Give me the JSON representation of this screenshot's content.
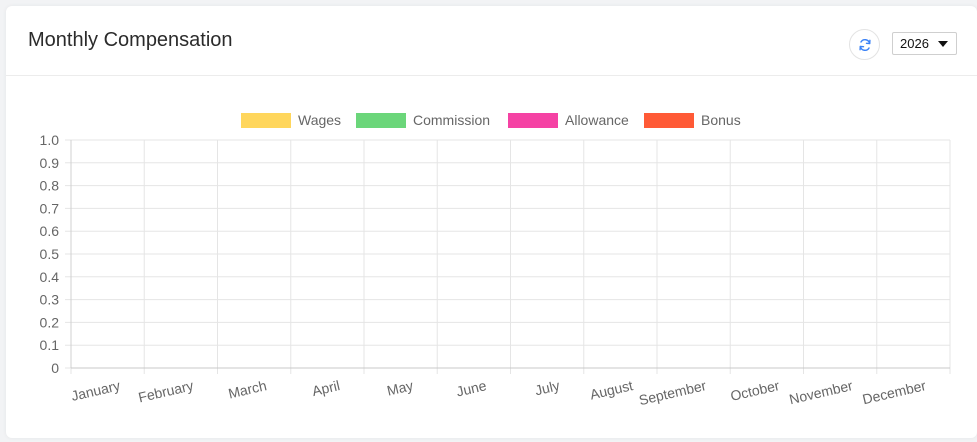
{
  "header": {
    "title": "Monthly Compensation",
    "refresh_icon": "refresh-icon",
    "year_value": "2026"
  },
  "colors": {
    "wages": "#ffd65c",
    "commission": "#6bd67a",
    "allowance": "#f542a4",
    "bonus": "#ff5a36",
    "refresh_icon": "#3b82f6",
    "grid": "#e5e5e5",
    "text": "#666666"
  },
  "chart_data": {
    "type": "bar",
    "title": "",
    "xlabel": "",
    "ylabel": "",
    "categories": [
      "January",
      "February",
      "March",
      "April",
      "May",
      "June",
      "July",
      "August",
      "September",
      "October",
      "November",
      "December"
    ],
    "series": [
      {
        "name": "Wages",
        "color": "#ffd65c",
        "values": [
          null,
          null,
          null,
          null,
          null,
          null,
          null,
          null,
          null,
          null,
          null,
          null
        ]
      },
      {
        "name": "Commission",
        "color": "#6bd67a",
        "values": [
          null,
          null,
          null,
          null,
          null,
          null,
          null,
          null,
          null,
          null,
          null,
          null
        ]
      },
      {
        "name": "Allowance",
        "color": "#f542a4",
        "values": [
          null,
          null,
          null,
          null,
          null,
          null,
          null,
          null,
          null,
          null,
          null,
          null
        ]
      },
      {
        "name": "Bonus",
        "color": "#ff5a36",
        "values": [
          null,
          null,
          null,
          null,
          null,
          null,
          null,
          null,
          null,
          null,
          null,
          null
        ]
      }
    ],
    "ylim": [
      0,
      1.0
    ],
    "y_ticks": [
      "1.0",
      "0.9",
      "0.8",
      "0.7",
      "0.6",
      "0.5",
      "0.4",
      "0.3",
      "0.2",
      "0.1",
      "0"
    ],
    "grid": true,
    "legend_position": "top-center"
  }
}
